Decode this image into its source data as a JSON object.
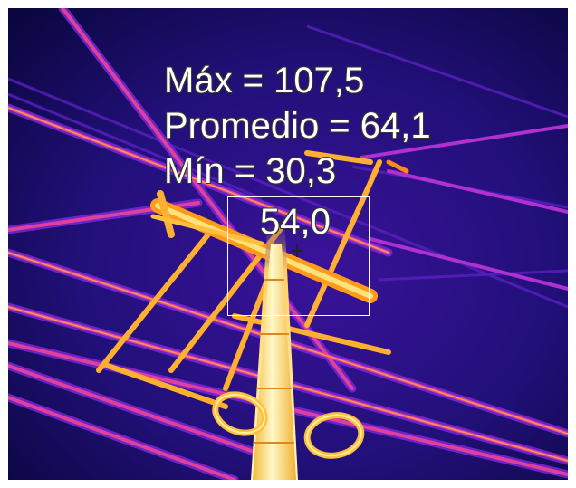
{
  "measurements": {
    "max": "Máx = 107,5",
    "average": "Promedio = 64,1",
    "min": "Mín = 30,3",
    "spot": "54,0"
  },
  "palette": {
    "background_dark": "#0b0640",
    "background_mid": "#2a0f8a",
    "cable_cool": "#8a2be2",
    "cable_warm": "#e0409a",
    "cable_hot": "#ff9a1a",
    "cable_hottest": "#fff6b0"
  }
}
